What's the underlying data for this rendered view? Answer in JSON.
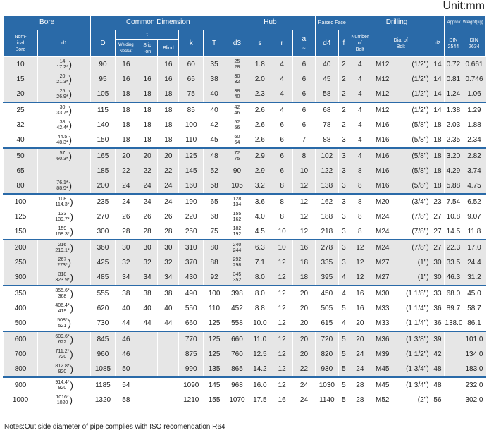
{
  "unit": "Unit:mm",
  "headers": {
    "bore": "Bore",
    "common": "Common Dimension",
    "hub": "Hub",
    "raised_face": "Raised Face",
    "drilling": "Drilling",
    "weight": "Approx. Weight(kg)",
    "nominal_bore": "Nom-\ninal\nBore",
    "d1": "d1",
    "D": "D",
    "t": "t",
    "t_welding": "Welding\nNeckaf",
    "t_slip": "Slip\n-on",
    "t_blind": "Blind",
    "k": "k",
    "T": "T",
    "d3": "d3",
    "s": "s",
    "r": "r",
    "a": "a",
    "a_sub": "≈",
    "d4": "d4",
    "f": "f",
    "bolt_num": "Number\nof\nBolt",
    "bolt_dia": "Dia. of\nBolt",
    "d2": "d2",
    "din2544": "DIN\n2544",
    "din2634": "DIN\n2634"
  },
  "groups": [
    {
      "shade": "g",
      "rows": [
        {
          "nb": "10",
          "d1": [
            "14",
            "17.2*"
          ],
          "D": "90",
          "tw": "16",
          "ts": "",
          "tb": "16",
          "k": "60",
          "T": "35",
          "d3": [
            "25",
            "28"
          ],
          "s": "1.8",
          "r": "4",
          "a": "6",
          "d4": "40",
          "f": "2",
          "n": "4",
          "bolt": "M12",
          "inch": "(1/2\")",
          "d2": "14",
          "w1": "0.72",
          "w2": "0.661"
        },
        {
          "nb": "15",
          "d1": [
            "20",
            "21.3*"
          ],
          "D": "95",
          "tw": "16",
          "ts": "16",
          "tb": "16",
          "k": "65",
          "T": "38",
          "d3": [
            "30",
            "32"
          ],
          "s": "2.0",
          "r": "4",
          "a": "6",
          "d4": "45",
          "f": "2",
          "n": "4",
          "bolt": "M12",
          "inch": "(1/2\")",
          "d2": "14",
          "w1": "0.81",
          "w2": "0.746"
        },
        {
          "nb": "20",
          "d1": [
            "25",
            "26.9*"
          ],
          "D": "105",
          "tw": "18",
          "ts": "18",
          "tb": "18",
          "k": "75",
          "T": "40",
          "d3": [
            "38",
            "40"
          ],
          "s": "2.3",
          "r": "4",
          "a": "6",
          "d4": "58",
          "f": "2",
          "n": "4",
          "bolt": "M12",
          "inch": "(1/2\")",
          "d2": "14",
          "w1": "1.24",
          "w2": "1.06"
        }
      ]
    },
    {
      "shade": "w",
      "rows": [
        {
          "nb": "25",
          "d1": [
            "30",
            "33.7*"
          ],
          "D": "115",
          "tw": "18",
          "ts": "18",
          "tb": "18",
          "k": "85",
          "T": "40",
          "d3": [
            "42",
            "46"
          ],
          "s": "2.6",
          "r": "4",
          "a": "6",
          "d4": "68",
          "f": "2",
          "n": "4",
          "bolt": "M12",
          "inch": "(1/2\")",
          "d2": "14",
          "w1": "1.38",
          "w2": "1.29"
        },
        {
          "nb": "32",
          "d1": [
            "38",
            "42.4*"
          ],
          "D": "140",
          "tw": "18",
          "ts": "18",
          "tb": "18",
          "k": "100",
          "T": "42",
          "d3": [
            "52",
            "56"
          ],
          "s": "2.6",
          "r": "6",
          "a": "6",
          "d4": "78",
          "f": "2",
          "n": "4",
          "bolt": "M16",
          "inch": "(5/8\")",
          "d2": "18",
          "w1": "2.03",
          "w2": "1.88"
        },
        {
          "nb": "40",
          "d1": [
            "44.5",
            "48.3*"
          ],
          "D": "150",
          "tw": "18",
          "ts": "18",
          "tb": "18",
          "k": "110",
          "T": "45",
          "d3": [
            "60",
            "64"
          ],
          "s": "2.6",
          "r": "6",
          "a": "7",
          "d4": "88",
          "f": "3",
          "n": "4",
          "bolt": "M16",
          "inch": "(5/8\")",
          "d2": "18",
          "w1": "2.35",
          "w2": "2.34"
        }
      ]
    },
    {
      "shade": "g",
      "rows": [
        {
          "nb": "50",
          "d1": [
            "57",
            "60.3*"
          ],
          "D": "165",
          "tw": "20",
          "ts": "20",
          "tb": "20",
          "k": "125",
          "T": "48",
          "d3": [
            "72",
            "75"
          ],
          "s": "2.9",
          "r": "6",
          "a": "8",
          "d4": "102",
          "f": "3",
          "n": "4",
          "bolt": "M16",
          "inch": "(5/8\")",
          "d2": "18",
          "w1": "3.20",
          "w2": "2.82"
        },
        {
          "nb": "65",
          "d1": [
            "",
            ""
          ],
          "D": "185",
          "tw": "22",
          "ts": "22",
          "tb": "22",
          "k": "145",
          "T": "52",
          "d3": [
            "90",
            ""
          ],
          "s": "2.9",
          "r": "6",
          "a": "10",
          "d4": "122",
          "f": "3",
          "n": "8",
          "bolt": "M16",
          "inch": "(5/8\")",
          "d2": "18",
          "w1": "4.29",
          "w2": "3.74"
        },
        {
          "nb": "80",
          "d1": [
            "76.1*",
            "88.9*"
          ],
          "D": "200",
          "tw": "24",
          "ts": "24",
          "tb": "24",
          "k": "160",
          "T": "58",
          "d3": [
            "105",
            ""
          ],
          "s": "3.2",
          "r": "8",
          "a": "12",
          "d4": "138",
          "f": "3",
          "n": "8",
          "bolt": "M16",
          "inch": "(5/8\")",
          "d2": "18",
          "w1": "5.88",
          "w2": "4.75"
        }
      ]
    },
    {
      "shade": "w",
      "rows": [
        {
          "nb": "100",
          "d1": [
            "108",
            "114.3*"
          ],
          "D": "235",
          "tw": "24",
          "ts": "24",
          "tb": "24",
          "k": "190",
          "T": "65",
          "d3": [
            "128",
            "134"
          ],
          "s": "3.6",
          "r": "8",
          "a": "12",
          "d4": "162",
          "f": "3",
          "n": "8",
          "bolt": "M20",
          "inch": "(3/4\")",
          "d2": "23",
          "w1": "7.54",
          "w2": "6.52"
        },
        {
          "nb": "125",
          "d1": [
            "133",
            "139.7*"
          ],
          "D": "270",
          "tw": "26",
          "ts": "26",
          "tb": "26",
          "k": "220",
          "T": "68",
          "d3": [
            "155",
            "162"
          ],
          "s": "4.0",
          "r": "8",
          "a": "12",
          "d4": "188",
          "f": "3",
          "n": "8",
          "bolt": "M24",
          "inch": "(7/8\")",
          "d2": "27",
          "w1": "10.8",
          "w2": "9.07"
        },
        {
          "nb": "150",
          "d1": [
            "159",
            "168.3*"
          ],
          "D": "300",
          "tw": "28",
          "ts": "28",
          "tb": "28",
          "k": "250",
          "T": "75",
          "d3": [
            "182",
            "192"
          ],
          "s": "4.5",
          "r": "10",
          "a": "12",
          "d4": "218",
          "f": "3",
          "n": "8",
          "bolt": "M24",
          "inch": "(7/8\")",
          "d2": "27",
          "w1": "14.5",
          "w2": "11.8"
        }
      ]
    },
    {
      "shade": "g",
      "rows": [
        {
          "nb": "200",
          "d1": [
            "216",
            "219.1*"
          ],
          "D": "360",
          "tw": "30",
          "ts": "30",
          "tb": "30",
          "k": "310",
          "T": "80",
          "d3": [
            "240",
            "244"
          ],
          "s": "6.3",
          "r": "10",
          "a": "16",
          "d4": "278",
          "f": "3",
          "n": "12",
          "bolt": "M24",
          "inch": "(7/8\")",
          "d2": "27",
          "w1": "22.3",
          "w2": "17.0"
        },
        {
          "nb": "250",
          "d1": [
            "267",
            "273*"
          ],
          "D": "425",
          "tw": "32",
          "ts": "32",
          "tb": "32",
          "k": "370",
          "T": "88",
          "d3": [
            "292",
            "298"
          ],
          "s": "7.1",
          "r": "12",
          "a": "18",
          "d4": "335",
          "f": "3",
          "n": "12",
          "bolt": "M27",
          "inch": "(1\")",
          "d2": "30",
          "w1": "33.5",
          "w2": "24.4"
        },
        {
          "nb": "300",
          "d1": [
            "318",
            "323.9*"
          ],
          "D": "485",
          "tw": "34",
          "ts": "34",
          "tb": "34",
          "k": "430",
          "T": "92",
          "d3": [
            "345",
            "352"
          ],
          "s": "8.0",
          "r": "12",
          "a": "18",
          "d4": "395",
          "f": "4",
          "n": "12",
          "bolt": "M27",
          "inch": "(1\")",
          "d2": "30",
          "w1": "46.3",
          "w2": "31.2"
        }
      ]
    },
    {
      "shade": "w",
      "rows": [
        {
          "nb": "350",
          "d1": [
            "355.6*",
            "368"
          ],
          "D": "555",
          "tw": "38",
          "ts": "38",
          "tb": "38",
          "k": "490",
          "T": "100",
          "d3": [
            "398",
            ""
          ],
          "s": "8.0",
          "r": "12",
          "a": "20",
          "d4": "450",
          "f": "4",
          "n": "16",
          "bolt": "M30",
          "inch": "(1 1/8\")",
          "d2": "33",
          "w1": "68.0",
          "w2": "45.0"
        },
        {
          "nb": "400",
          "d1": [
            "406.4*",
            "419"
          ],
          "D": "620",
          "tw": "40",
          "ts": "40",
          "tb": "40",
          "k": "550",
          "T": "110",
          "d3": [
            "452",
            ""
          ],
          "s": "8.8",
          "r": "12",
          "a": "20",
          "d4": "505",
          "f": "5",
          "n": "16",
          "bolt": "M33",
          "inch": "(1 1/4\")",
          "d2": "36",
          "w1": "89.7",
          "w2": "58.7"
        },
        {
          "nb": "500",
          "d1": [
            "508*",
            "521"
          ],
          "D": "730",
          "tw": "44",
          "ts": "44",
          "tb": "44",
          "k": "660",
          "T": "125",
          "d3": [
            "558",
            ""
          ],
          "s": "10.0",
          "r": "12",
          "a": "20",
          "d4": "615",
          "f": "4",
          "n": "20",
          "bolt": "M33",
          "inch": "(1 1/4\")",
          "d2": "36",
          "w1": "138.0",
          "w2": "86.1"
        }
      ]
    },
    {
      "shade": "g",
      "rows": [
        {
          "nb": "600",
          "d1": [
            "609.6*",
            "622"
          ],
          "D": "845",
          "tw": "46",
          "ts": "",
          "tb": "",
          "k": "770",
          "T": "125",
          "d3": [
            "660",
            ""
          ],
          "s": "11.0",
          "r": "12",
          "a": "20",
          "d4": "720",
          "f": "5",
          "n": "20",
          "bolt": "M36",
          "inch": "(1 3/8\")",
          "d2": "39",
          "w1": "",
          "w2": "101.0"
        },
        {
          "nb": "700",
          "d1": [
            "711.2*",
            "720"
          ],
          "D": "960",
          "tw": "46",
          "ts": "",
          "tb": "",
          "k": "875",
          "T": "125",
          "d3": [
            "760",
            ""
          ],
          "s": "12.5",
          "r": "12",
          "a": "20",
          "d4": "820",
          "f": "5",
          "n": "24",
          "bolt": "M39",
          "inch": "(1 1/2\")",
          "d2": "42",
          "w1": "",
          "w2": "134.0"
        },
        {
          "nb": "800",
          "d1": [
            "812.8*",
            "820"
          ],
          "D": "1085",
          "tw": "50",
          "ts": "",
          "tb": "",
          "k": "990",
          "T": "135",
          "d3": [
            "865",
            ""
          ],
          "s": "14.2",
          "r": "12",
          "a": "22",
          "d4": "930",
          "f": "5",
          "n": "24",
          "bolt": "M45",
          "inch": "(1 3/4\")",
          "d2": "48",
          "w1": "",
          "w2": "183.0"
        }
      ]
    },
    {
      "shade": "w",
      "rows": [
        {
          "nb": "900",
          "d1": [
            "914.4*",
            "920"
          ],
          "D": "1185",
          "tw": "54",
          "ts": "",
          "tb": "",
          "k": "1090",
          "T": "145",
          "d3": [
            "968",
            ""
          ],
          "s": "16.0",
          "r": "12",
          "a": "24",
          "d4": "1030",
          "f": "5",
          "n": "28",
          "bolt": "M45",
          "inch": "(1 3/4\")",
          "d2": "48",
          "w1": "",
          "w2": "232.0"
        },
        {
          "nb": "1000",
          "d1": [
            "1016*",
            "1020"
          ],
          "D": "1320",
          "tw": "58",
          "ts": "",
          "tb": "",
          "k": "1210",
          "T": "155",
          "d3": [
            "1070",
            ""
          ],
          "s": "17.5",
          "r": "16",
          "a": "24",
          "d4": "1140",
          "f": "5",
          "n": "28",
          "bolt": "M52",
          "inch": "(2\")",
          "d2": "56",
          "w1": "",
          "w2": "302.0"
        }
      ]
    }
  ],
  "note": "Notes:Out side diameter of pipe complies with ISO recomendation R64",
  "colors": {
    "header": "#2a6aa8",
    "shade": "#e6e6e6"
  }
}
